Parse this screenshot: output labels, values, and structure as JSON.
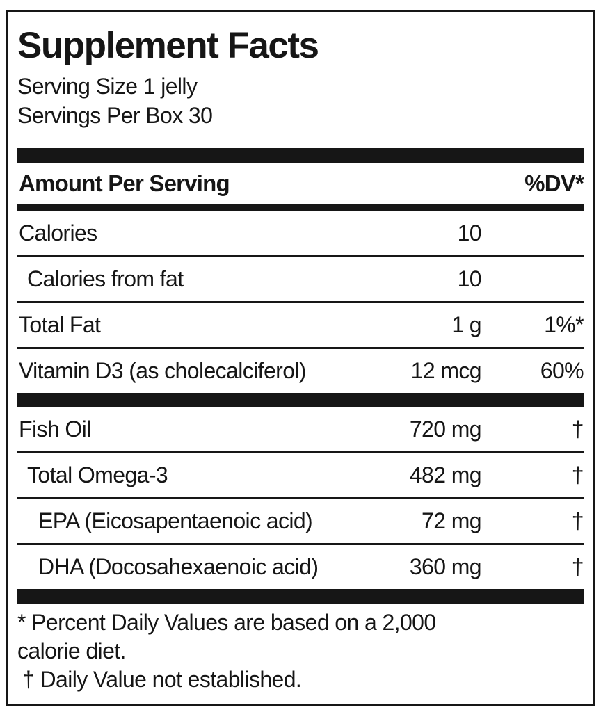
{
  "label": {
    "title": "Supplement Facts",
    "serving_size": "Serving Size 1 jelly",
    "servings_per_box": "Servings Per Box 30",
    "columns": {
      "amount_header": "Amount Per Serving",
      "dv_header": "%DV*"
    },
    "rows": [
      {
        "name": "Calories",
        "amount": "10",
        "dv": "",
        "indent": 0
      },
      {
        "name": "Calories from fat",
        "amount": "10",
        "dv": "",
        "indent": 1
      },
      {
        "name": "Total Fat",
        "amount": "1 g",
        "dv": "1%*",
        "indent": 0
      },
      {
        "name": "Vitamin D3 (as cholecalciferol)",
        "amount": "12 mcg",
        "dv": "60%",
        "indent": 0
      },
      {
        "name": "Fish Oil",
        "amount": "720 mg",
        "dv": "†",
        "indent": 0
      },
      {
        "name": "Total Omega-3",
        "amount": "482 mg",
        "dv": "†",
        "indent": 1
      },
      {
        "name": "EPA (Eicosapentaenoic acid)",
        "amount": "72 mg",
        "dv": "†",
        "indent": 2
      },
      {
        "name": "DHA (Docosahexaenoic acid)",
        "amount": "360 mg",
        "dv": "†",
        "indent": 2
      }
    ],
    "footnotes": {
      "line1": "* Percent Daily Values are based on a 2,000",
      "line2": "calorie diet.",
      "line3": "† Daily Value not established."
    },
    "colors": {
      "ink": "#161616",
      "background": "#ffffff"
    }
  }
}
